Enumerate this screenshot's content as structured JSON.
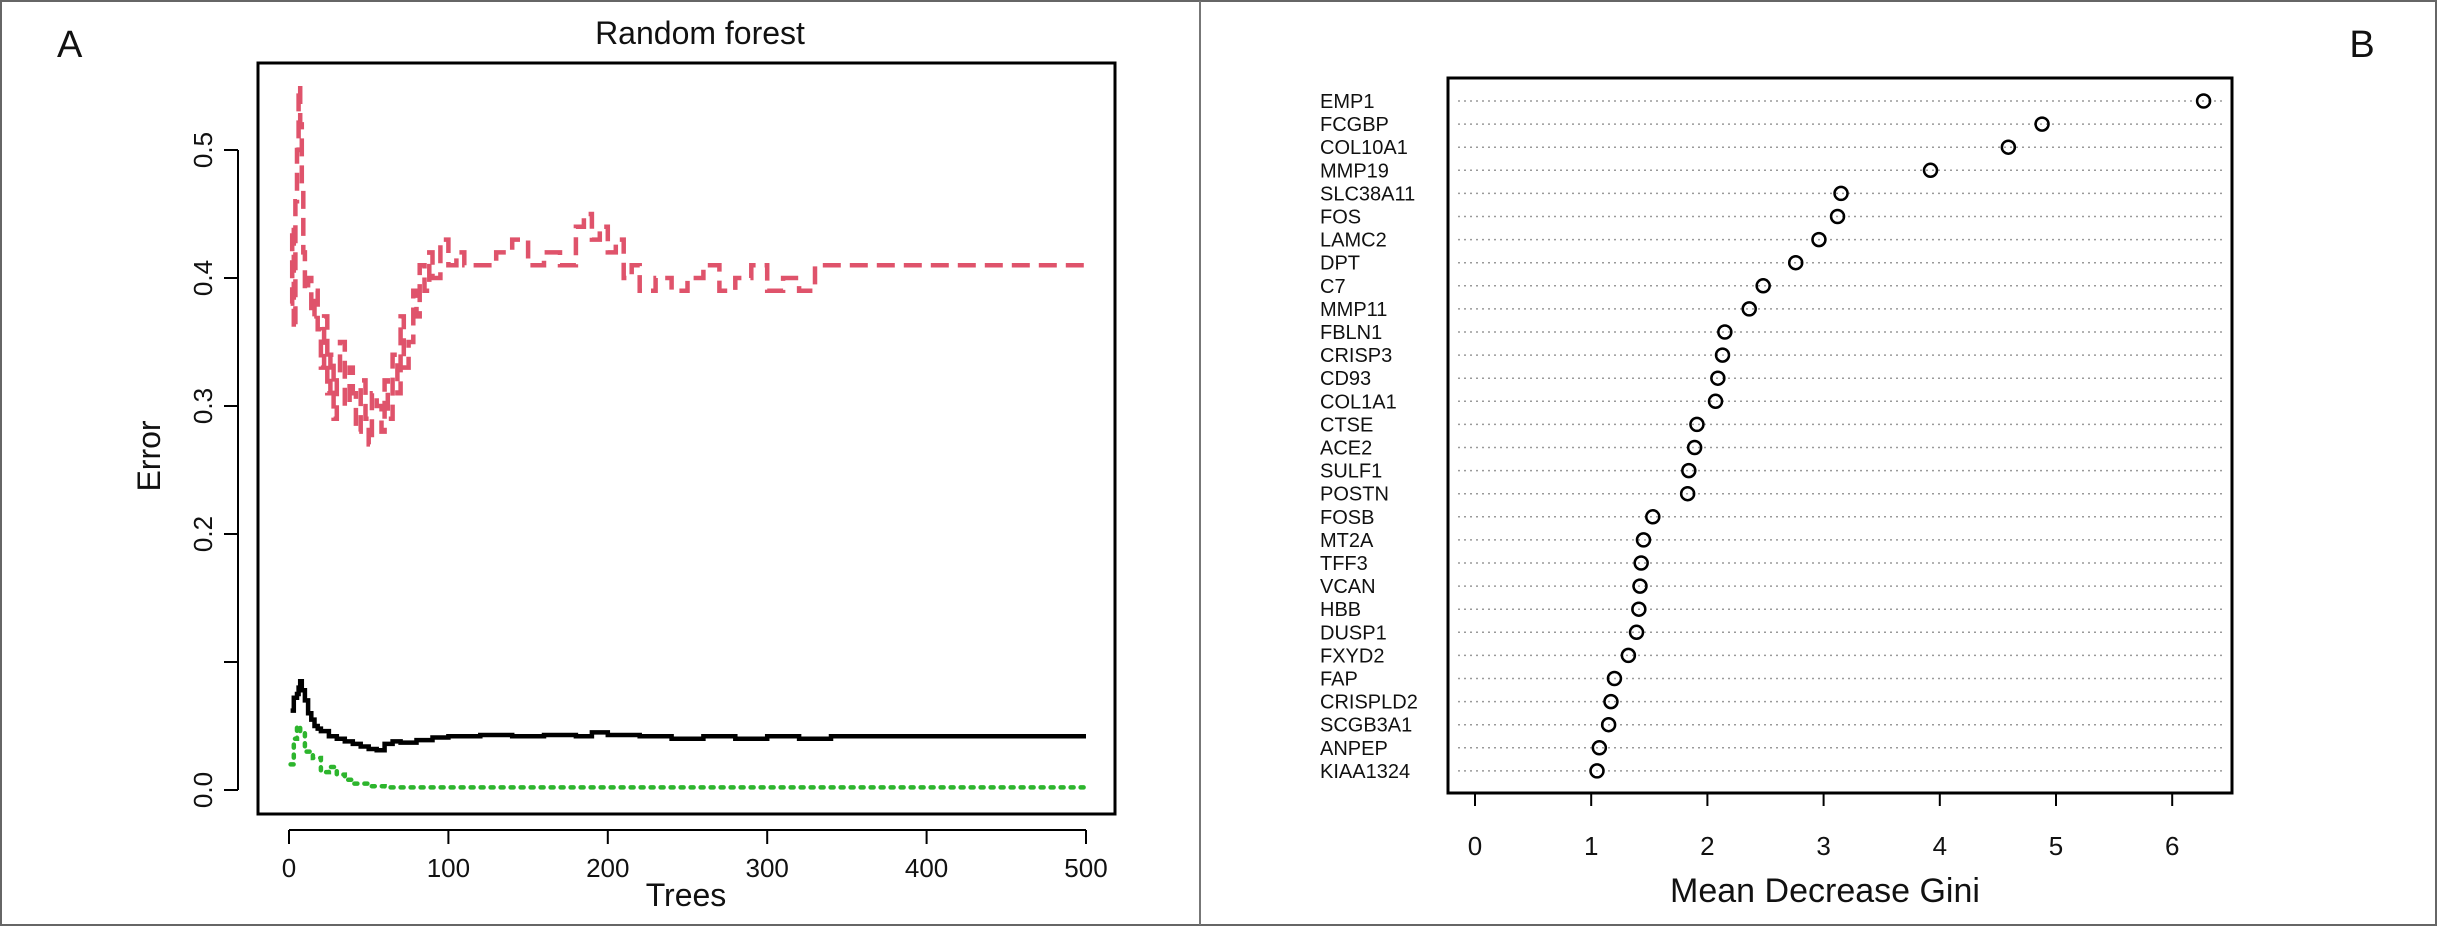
{
  "panels": {
    "left_label": "A",
    "right_label": "B"
  },
  "colors": {
    "oob": "#000000",
    "class1": "#2db52d",
    "class2": "#df536b",
    "points": "#000000"
  },
  "chart_data": [
    {
      "type": "line",
      "title": "Random forest",
      "xlabel": "Trees",
      "ylabel": "Error",
      "xlim": [
        0,
        500
      ],
      "ylim": [
        0.0,
        0.55
      ],
      "xticks": [
        "0",
        "100",
        "200",
        "300",
        "400",
        "500"
      ],
      "yticks": [
        "0.0",
        "0.2",
        "0.3",
        "0.4",
        "0.5"
      ],
      "ytick_values": [
        0.0,
        0.2,
        0.3,
        0.4,
        0.5
      ],
      "series": [
        {
          "line_style": "solid",
          "x": [
            1,
            3,
            5,
            6,
            7,
            8,
            10,
            12,
            14,
            16,
            18,
            20,
            25,
            30,
            35,
            40,
            45,
            50,
            55,
            60,
            65,
            70,
            80,
            90,
            100,
            110,
            120,
            140,
            160,
            180,
            190,
            200,
            220,
            240,
            260,
            280,
            300,
            320,
            340,
            360,
            400,
            450,
            500
          ],
          "y": [
            0.062,
            0.072,
            0.075,
            0.08,
            0.085,
            0.078,
            0.07,
            0.06,
            0.055,
            0.05,
            0.048,
            0.046,
            0.042,
            0.04,
            0.038,
            0.036,
            0.034,
            0.032,
            0.031,
            0.036,
            0.038,
            0.037,
            0.039,
            0.041,
            0.042,
            0.042,
            0.043,
            0.042,
            0.043,
            0.042,
            0.045,
            0.043,
            0.042,
            0.04,
            0.042,
            0.04,
            0.042,
            0.04,
            0.042,
            0.042,
            0.042,
            0.042,
            0.042
          ]
        },
        {
          "line_style": "dotted",
          "x": [
            1,
            3,
            5,
            7,
            10,
            15,
            20,
            25,
            30,
            35,
            40,
            50,
            60,
            100,
            200,
            300,
            400,
            500
          ],
          "y": [
            0.02,
            0.04,
            0.05,
            0.045,
            0.03,
            0.025,
            0.014,
            0.018,
            0.012,
            0.008,
            0.005,
            0.003,
            0.002,
            0.002,
            0.002,
            0.002,
            0.002,
            0.002
          ]
        },
        {
          "line_style": "dashed",
          "x": [
            1,
            2,
            3,
            4,
            5,
            6,
            7,
            8,
            9,
            10,
            12,
            14,
            16,
            18,
            20,
            22,
            24,
            26,
            28,
            30,
            32,
            35,
            38,
            40,
            42,
            45,
            48,
            50,
            52,
            55,
            58,
            60,
            62,
            65,
            68,
            70,
            72,
            75,
            78,
            80,
            82,
            85,
            88,
            90,
            95,
            100,
            105,
            110,
            120,
            130,
            140,
            150,
            160,
            170,
            180,
            185,
            190,
            195,
            200,
            205,
            210,
            215,
            220,
            230,
            240,
            250,
            260,
            270,
            280,
            290,
            300,
            310,
            320,
            330,
            400,
            500
          ],
          "y": [
            0.38,
            0.44,
            0.36,
            0.46,
            0.5,
            0.55,
            0.52,
            0.47,
            0.42,
            0.39,
            0.4,
            0.37,
            0.39,
            0.36,
            0.33,
            0.37,
            0.31,
            0.34,
            0.29,
            0.32,
            0.35,
            0.3,
            0.33,
            0.31,
            0.28,
            0.32,
            0.29,
            0.27,
            0.31,
            0.3,
            0.28,
            0.32,
            0.29,
            0.34,
            0.31,
            0.37,
            0.33,
            0.35,
            0.39,
            0.37,
            0.41,
            0.39,
            0.42,
            0.4,
            0.43,
            0.41,
            0.42,
            0.41,
            0.41,
            0.42,
            0.43,
            0.41,
            0.42,
            0.41,
            0.44,
            0.45,
            0.43,
            0.44,
            0.42,
            0.43,
            0.4,
            0.41,
            0.39,
            0.4,
            0.39,
            0.4,
            0.41,
            0.39,
            0.4,
            0.41,
            0.39,
            0.4,
            0.39,
            0.41,
            0.41,
            0.41
          ]
        }
      ]
    },
    {
      "type": "scatter",
      "title": "",
      "xlabel": "Mean Decrease Gini",
      "ylabel": "",
      "xlim": [
        0,
        6.5
      ],
      "xticks": [
        "0",
        "1",
        "2",
        "3",
        "4",
        "5",
        "6"
      ],
      "xtick_values": [
        0,
        1,
        2,
        3,
        4,
        5,
        6
      ],
      "categories": [
        "EMP1",
        "FCGBP",
        "COL10A1",
        "MMP19",
        "SLC38A11",
        "FOS",
        "LAMC2",
        "DPT",
        "C7",
        "MMP11",
        "FBLN1",
        "CRISP3",
        "CD93",
        "COL1A1",
        "CTSE",
        "ACE2",
        "SULF1",
        "POSTN",
        "FOSB",
        "MT2A",
        "TFF3",
        "VCAN",
        "HBB",
        "DUSP1",
        "FXYD2",
        "FAP",
        "CRISPLD2",
        "SCGB3A1",
        "ANPEP",
        "KIAA1324"
      ],
      "values": [
        6.27,
        4.88,
        4.59,
        3.92,
        3.15,
        3.12,
        2.96,
        2.76,
        2.48,
        2.36,
        2.15,
        2.13,
        2.09,
        2.07,
        1.91,
        1.89,
        1.84,
        1.83,
        1.53,
        1.45,
        1.43,
        1.42,
        1.41,
        1.39,
        1.32,
        1.2,
        1.17,
        1.15,
        1.07,
        1.05
      ]
    }
  ]
}
